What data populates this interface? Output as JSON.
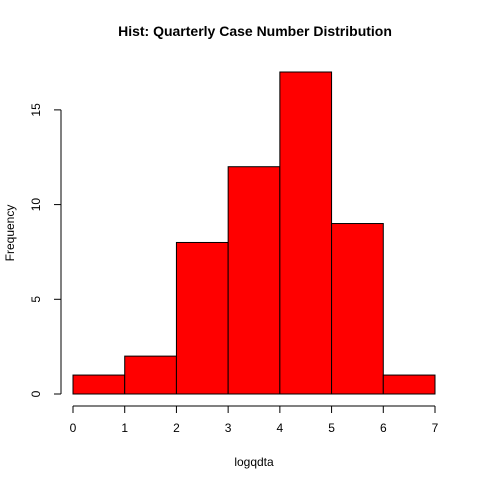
{
  "chart_data": {
    "type": "bar",
    "title": "Hist: Quarterly Case Number Distribution",
    "xlabel": "logqdta",
    "ylabel": "Frequency",
    "bins": [
      {
        "from": 0,
        "to": 1,
        "count": 1
      },
      {
        "from": 1,
        "to": 2,
        "count": 2
      },
      {
        "from": 2,
        "to": 3,
        "count": 8
      },
      {
        "from": 3,
        "to": 4,
        "count": 12
      },
      {
        "from": 4,
        "to": 5,
        "count": 17
      },
      {
        "from": 5,
        "to": 6,
        "count": 9
      },
      {
        "from": 6,
        "to": 7,
        "count": 1
      }
    ],
    "xlim": [
      0,
      7
    ],
    "ylim": [
      0,
      17
    ],
    "xticks": [
      0,
      1,
      2,
      3,
      4,
      5,
      6,
      7
    ],
    "yticks": [
      0,
      5,
      10,
      15
    ],
    "bar_color": "#ff0000",
    "bar_edge_color": "#000000",
    "grid": false
  }
}
